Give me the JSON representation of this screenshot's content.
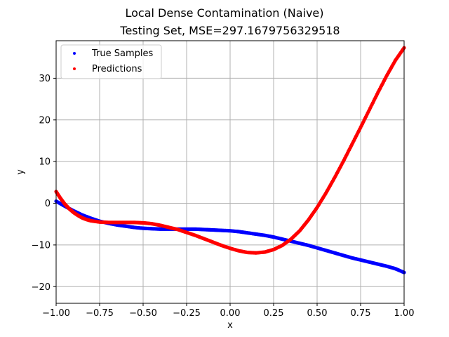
{
  "chart_data": {
    "type": "scatter",
    "suptitle": "Local Dense Contamination (Naive)",
    "title": "Testing Set, MSE=297.1679756329518",
    "xlabel": "x",
    "ylabel": "y",
    "xlim": [
      -1.0,
      1.0
    ],
    "ylim": [
      -24.0,
      39.0
    ],
    "grid": true,
    "legend_position": "top-left",
    "x_ticks": [
      -1.0,
      -0.75,
      -0.5,
      -0.25,
      0.0,
      0.25,
      0.5,
      0.75,
      1.0
    ],
    "x_tick_labels": [
      "−1.00",
      "−0.75",
      "−0.50",
      "−0.25",
      "0.00",
      "0.25",
      "0.50",
      "0.75",
      "1.00"
    ],
    "y_ticks": [
      -20,
      -10,
      0,
      10,
      20,
      30
    ],
    "y_tick_labels": [
      "−20",
      "−10",
      "0",
      "10",
      "20",
      "30"
    ],
    "series": [
      {
        "name": "True Samples",
        "color": "#0000ff",
        "points": [
          [
            -1.0,
            0.5
          ],
          [
            -0.95,
            -0.7
          ],
          [
            -0.9,
            -1.8
          ],
          [
            -0.85,
            -2.8
          ],
          [
            -0.8,
            -3.6
          ],
          [
            -0.75,
            -4.3
          ],
          [
            -0.7,
            -4.8
          ],
          [
            -0.65,
            -5.2
          ],
          [
            -0.6,
            -5.5
          ],
          [
            -0.55,
            -5.8
          ],
          [
            -0.5,
            -6.0
          ],
          [
            -0.45,
            -6.1
          ],
          [
            -0.4,
            -6.2
          ],
          [
            -0.35,
            -6.2
          ],
          [
            -0.3,
            -6.2
          ],
          [
            -0.25,
            -6.2
          ],
          [
            -0.2,
            -6.2
          ],
          [
            -0.15,
            -6.3
          ],
          [
            -0.1,
            -6.4
          ],
          [
            -0.05,
            -6.5
          ],
          [
            0.0,
            -6.6
          ],
          [
            0.05,
            -6.8
          ],
          [
            0.1,
            -7.1
          ],
          [
            0.15,
            -7.4
          ],
          [
            0.2,
            -7.7
          ],
          [
            0.25,
            -8.1
          ],
          [
            0.3,
            -8.6
          ],
          [
            0.35,
            -9.1
          ],
          [
            0.4,
            -9.6
          ],
          [
            0.45,
            -10.1
          ],
          [
            0.5,
            -10.7
          ],
          [
            0.55,
            -11.3
          ],
          [
            0.6,
            -11.9
          ],
          [
            0.65,
            -12.5
          ],
          [
            0.7,
            -13.1
          ],
          [
            0.75,
            -13.6
          ],
          [
            0.8,
            -14.1
          ],
          [
            0.85,
            -14.6
          ],
          [
            0.9,
            -15.1
          ],
          [
            0.95,
            -15.7
          ],
          [
            1.0,
            -16.6
          ]
        ]
      },
      {
        "name": "Predictions",
        "color": "#ff0000",
        "points": [
          [
            -1.0,
            2.8
          ],
          [
            -0.975,
            1.2
          ],
          [
            -0.95,
            -0.2
          ],
          [
            -0.925,
            -1.3
          ],
          [
            -0.9,
            -2.2
          ],
          [
            -0.875,
            -2.9
          ],
          [
            -0.85,
            -3.5
          ],
          [
            -0.825,
            -3.9
          ],
          [
            -0.8,
            -4.2
          ],
          [
            -0.75,
            -4.5
          ],
          [
            -0.7,
            -4.6
          ],
          [
            -0.65,
            -4.6
          ],
          [
            -0.6,
            -4.6
          ],
          [
            -0.55,
            -4.6
          ],
          [
            -0.5,
            -4.7
          ],
          [
            -0.45,
            -4.9
          ],
          [
            -0.4,
            -5.3
          ],
          [
            -0.35,
            -5.8
          ],
          [
            -0.3,
            -6.3
          ],
          [
            -0.25,
            -7.0
          ],
          [
            -0.2,
            -7.7
          ],
          [
            -0.15,
            -8.5
          ],
          [
            -0.1,
            -9.3
          ],
          [
            -0.05,
            -10.1
          ],
          [
            0.0,
            -10.8
          ],
          [
            0.05,
            -11.4
          ],
          [
            0.1,
            -11.8
          ],
          [
            0.15,
            -11.9
          ],
          [
            0.2,
            -11.7
          ],
          [
            0.25,
            -11.1
          ],
          [
            0.3,
            -10.1
          ],
          [
            0.35,
            -8.6
          ],
          [
            0.4,
            -6.6
          ],
          [
            0.45,
            -4.0
          ],
          [
            0.5,
            -1.0
          ],
          [
            0.55,
            2.4
          ],
          [
            0.6,
            6.1
          ],
          [
            0.65,
            10.0
          ],
          [
            0.7,
            14.1
          ],
          [
            0.75,
            18.2
          ],
          [
            0.8,
            22.4
          ],
          [
            0.85,
            26.6
          ],
          [
            0.9,
            30.6
          ],
          [
            0.95,
            34.3
          ],
          [
            1.0,
            37.3
          ]
        ]
      }
    ]
  }
}
